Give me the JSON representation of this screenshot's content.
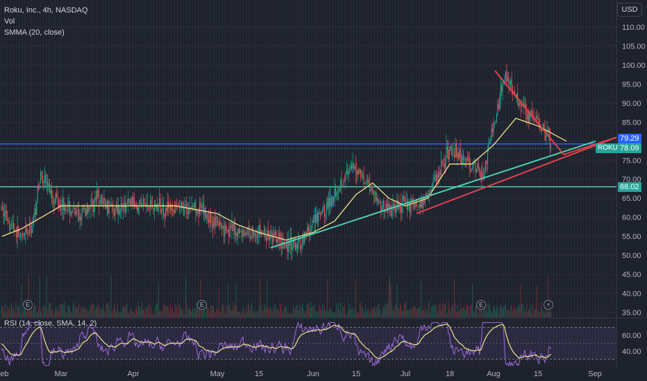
{
  "header": {
    "symbol": "Roku, Inc., 4h, NASDAQ",
    "indicators": [
      "Vol",
      "SMMA (20, close)"
    ],
    "currency": "USD"
  },
  "colors": {
    "background": "#1e222d",
    "up_candle": "#26a69a",
    "down_candle": "#ef5350",
    "smma": "#f0e68c",
    "rsi": "#9c6bd9",
    "rsi_ma": "#f0e68c",
    "resistance_line": "#2962ff",
    "support_line": "#4dd0b4",
    "trendline_red": "#e2434e",
    "trendline_teal": "#26a69a"
  },
  "icons": {
    "earnings": "earnings-icon",
    "dividend": "lightning-icon"
  },
  "price_tags": [
    {
      "label": "79.29",
      "value": 79.29,
      "color": "#2962ff"
    },
    {
      "label": "78.09",
      "value": 78.09,
      "color": "#26a69a"
    },
    {
      "label": "68.02",
      "value": 68.02,
      "color": "#26a69a"
    }
  ],
  "roku_tag": "ROKU",
  "rsi_label": "RSI (14, close, SMA, 14, 2)",
  "chart_data": {
    "type": "candlestick",
    "title": "Roku, Inc., 4h, NASDAQ",
    "x_ticks": [
      "Feb",
      "Mar",
      "Apr",
      "May",
      "15",
      "Jun",
      "15",
      "Jul",
      "18",
      "Aug",
      "15",
      "Sep"
    ],
    "y_ticks": [
      110,
      105,
      100,
      95,
      90,
      85,
      80,
      75,
      70,
      65,
      60,
      55,
      50,
      45,
      40,
      35
    ],
    "y_tick_labels": [
      "110.00",
      "105.00",
      "100.00",
      "95.00",
      "90.00",
      "85.00",
      "80.00",
      "75.00",
      "70.00",
      "65.00",
      "60.00",
      "55.00",
      "50.00",
      "45.00",
      "40.00",
      "35.00"
    ],
    "ylim": [
      35,
      112
    ],
    "horizontal_levels": [
      79.29,
      68.02
    ],
    "last_price": 78.09,
    "price_path": [
      [
        "Feb",
        62
      ],
      [
        "Feb",
        58
      ],
      [
        "Feb",
        54
      ],
      [
        "Feb",
        57
      ],
      [
        "Feb",
        72
      ],
      [
        "Feb",
        66
      ],
      [
        "Mar",
        64
      ],
      [
        "Mar",
        60
      ],
      [
        "Mar",
        65
      ],
      [
        "Mar",
        62
      ],
      [
        "Apr",
        64
      ],
      [
        "Apr",
        63
      ],
      [
        "Apr",
        62
      ],
      [
        "Apr",
        63
      ],
      [
        "May",
        58
      ],
      [
        "May",
        56
      ],
      [
        "15",
        56
      ],
      [
        "15",
        54
      ],
      [
        "15",
        52
      ],
      [
        "Jun",
        58
      ],
      [
        "Jun",
        63
      ],
      [
        "Jun",
        70
      ],
      [
        "15",
        73
      ],
      [
        "15",
        69
      ],
      [
        "15",
        63
      ],
      [
        "15",
        62
      ],
      [
        "Jul",
        64
      ],
      [
        "Jul",
        63
      ],
      [
        "Jul",
        70
      ],
      [
        "18",
        78
      ],
      [
        "18",
        76
      ],
      [
        "18",
        74
      ],
      [
        "18",
        71
      ],
      [
        "Aug",
        84
      ],
      [
        "Aug",
        98
      ],
      [
        "Aug",
        92
      ],
      [
        "Aug",
        88
      ],
      [
        "15",
        85
      ],
      [
        "15",
        80
      ],
      [
        "15",
        82
      ],
      [
        "15",
        78
      ]
    ],
    "smma_path": [
      [
        "Feb",
        55
      ],
      [
        "Feb",
        57
      ],
      [
        "Feb",
        60
      ],
      [
        "Mar",
        63
      ],
      [
        "Mar",
        63
      ],
      [
        "Apr",
        63
      ],
      [
        "Apr",
        63
      ],
      [
        "May",
        61
      ],
      [
        "May",
        58
      ],
      [
        "15",
        56
      ],
      [
        "15",
        54
      ],
      [
        "Jun",
        56
      ],
      [
        "Jun",
        59
      ],
      [
        "15",
        66
      ],
      [
        "15",
        69
      ],
      [
        "15",
        65
      ],
      [
        "Jul",
        63
      ],
      [
        "Jul",
        65
      ],
      [
        "18",
        74
      ],
      [
        "18",
        74
      ],
      [
        "Aug",
        79
      ],
      [
        "Aug",
        86
      ],
      [
        "15",
        84
      ],
      [
        "15",
        80
      ]
    ],
    "trendlines": [
      {
        "name": "teal-trendline",
        "color": "#4dd0b4",
        "from": [
          "15",
          52
        ],
        "to": [
          "Sep",
          80
        ]
      },
      {
        "name": "red-lower-trendline",
        "color": "#e2434e",
        "from": [
          "Jul",
          61
        ],
        "to": [
          "Sep",
          81
        ]
      },
      {
        "name": "red-upper-trendline",
        "color": "#e2434e",
        "from": [
          "Aug",
          98.5
        ],
        "to": [
          "15",
          76.5
        ]
      }
    ],
    "rsi": {
      "label": "RSI (14, close, SMA, 14, 2)",
      "y_ticks": [
        60,
        40
      ],
      "y_tick_labels": [
        "60.00",
        "40.00"
      ],
      "ylim": [
        20,
        80
      ],
      "band": [
        30,
        70
      ]
    },
    "volume_note": "Vol"
  }
}
